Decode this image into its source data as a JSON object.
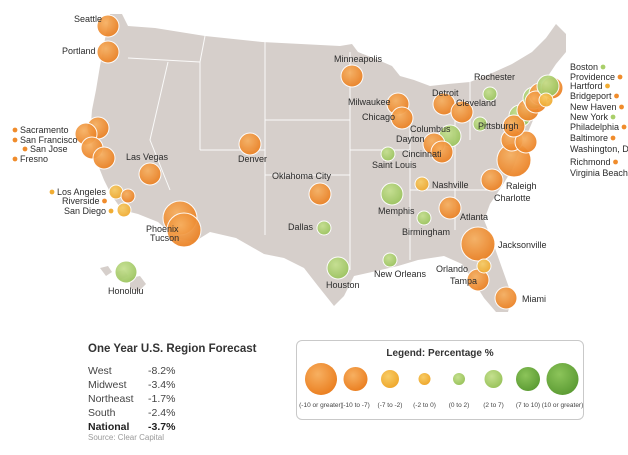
{
  "colors": {
    "orange": "#f08c2c",
    "amber": "#f1ad33",
    "light_green": "#a9cf6a",
    "green": "#6aaa3e",
    "land": "#d6cfcb",
    "state_line": "#ffffff"
  },
  "cities": [
    {
      "name": "Seattle",
      "color": "orange",
      "size": 2
    },
    {
      "name": "Portland",
      "color": "orange",
      "size": 2
    },
    {
      "name": "Sacramento",
      "color": "orange",
      "size": 2
    },
    {
      "name": "San Francisco",
      "color": "orange",
      "size": 2
    },
    {
      "name": "San Jose",
      "color": "orange",
      "size": 2
    },
    {
      "name": "Fresno",
      "color": "orange",
      "size": 2
    },
    {
      "name": "Las Vegas",
      "color": "orange",
      "size": 2
    },
    {
      "name": "Los Angeles",
      "color": "amber",
      "size": 1
    },
    {
      "name": "Riverside",
      "color": "orange",
      "size": 1
    },
    {
      "name": "San Diego",
      "color": "amber",
      "size": 1
    },
    {
      "name": "Phoenix",
      "color": "orange",
      "size": 3
    },
    {
      "name": "Tucson",
      "color": "orange",
      "size": 3
    },
    {
      "name": "Denver",
      "color": "orange",
      "size": 2
    },
    {
      "name": "Honolulu",
      "color": "light_green",
      "size": 2
    },
    {
      "name": "Minneapolis",
      "color": "orange",
      "size": 2
    },
    {
      "name": "Milwaukee",
      "color": "orange",
      "size": 2
    },
    {
      "name": "Chicago",
      "color": "orange",
      "size": 2
    },
    {
      "name": "Oklahoma City",
      "color": "orange",
      "size": 2
    },
    {
      "name": "Dallas",
      "color": "light_green",
      "size": 1
    },
    {
      "name": "Houston",
      "color": "light_green",
      "size": 2
    },
    {
      "name": "Saint Louis",
      "color": "light_green",
      "size": 1
    },
    {
      "name": "Memphis",
      "color": "light_green",
      "size": 2
    },
    {
      "name": "Nashville",
      "color": "amber",
      "size": 1
    },
    {
      "name": "Birmingham",
      "color": "light_green",
      "size": 1
    },
    {
      "name": "New Orleans",
      "color": "light_green",
      "size": 1
    },
    {
      "name": "Atlanta",
      "color": "orange",
      "size": 2
    },
    {
      "name": "Jacksonville",
      "color": "orange",
      "size": 3
    },
    {
      "name": "Orlando",
      "color": "amber",
      "size": 1
    },
    {
      "name": "Tampa",
      "color": "orange",
      "size": 2
    },
    {
      "name": "Miami",
      "color": "orange",
      "size": 2
    },
    {
      "name": "Detroit",
      "color": "orange",
      "size": 2
    },
    {
      "name": "Cleveland",
      "color": "orange",
      "size": 2
    },
    {
      "name": "Columbus",
      "color": "light_green",
      "size": 2
    },
    {
      "name": "Dayton",
      "color": "orange",
      "size": 2
    },
    {
      "name": "Cincinnati",
      "color": "orange",
      "size": 2
    },
    {
      "name": "Pittsburgh",
      "color": "light_green",
      "size": 1
    },
    {
      "name": "Rochester",
      "color": "light_green",
      "size": 1
    },
    {
      "name": "Charlotte",
      "color": "orange",
      "size": 2
    },
    {
      "name": "Raleigh",
      "color": "orange",
      "size": 3
    },
    {
      "name": "Richmond",
      "color": "orange",
      "size": 2
    },
    {
      "name": "Virginia Beach",
      "color": "orange",
      "size": 2
    },
    {
      "name": "Washington, DC",
      "color": "light_green",
      "size": 2
    },
    {
      "name": "Baltimore",
      "color": "orange",
      "size": 2
    },
    {
      "name": "Philadelphia",
      "color": "orange",
      "size": 2
    },
    {
      "name": "New York",
      "color": "light_green",
      "size": 2
    },
    {
      "name": "New Haven",
      "color": "orange",
      "size": 2
    },
    {
      "name": "Bridgeport",
      "color": "orange",
      "size": 2
    },
    {
      "name": "Hartford",
      "color": "amber",
      "size": 1
    },
    {
      "name": "Providence",
      "color": "orange",
      "size": 2
    },
    {
      "name": "Boston",
      "color": "light_green",
      "size": 2
    }
  ],
  "forecast": {
    "title": "One Year U.S. Region Forecast",
    "rows": [
      {
        "region": "West",
        "value": "-8.2%"
      },
      {
        "region": "Midwest",
        "value": "-3.4%"
      },
      {
        "region": "Northeast",
        "value": "-1.7%"
      },
      {
        "region": "South",
        "value": "-2.4%"
      },
      {
        "region": "National",
        "value": "-3.7%"
      }
    ]
  },
  "source": "Source: Clear Capital",
  "legend": {
    "title": "Legend: Percentage %",
    "items": [
      {
        "label": "(-10 or greater)",
        "color": "orange",
        "size": 4
      },
      {
        "label": "(-10 to -7)",
        "color": "orange",
        "size": 3
      },
      {
        "label": "(-7 to -2)",
        "color": "amber",
        "size": 2
      },
      {
        "label": "(-2 to 0)",
        "color": "amber",
        "size": 1
      },
      {
        "label": "(0 to 2)",
        "color": "light_green",
        "size": 1
      },
      {
        "label": "(2 to 7)",
        "color": "light_green",
        "size": 2
      },
      {
        "label": "(7 to 10)",
        "color": "green",
        "size": 3
      },
      {
        "label": "(10 or greater)",
        "color": "green",
        "size": 4
      }
    ]
  }
}
